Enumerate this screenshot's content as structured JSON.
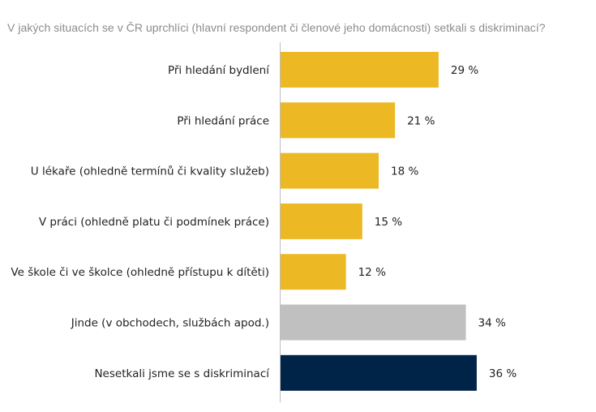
{
  "chart_data": {
    "type": "bar",
    "orientation": "horizontal",
    "title": "V jakých situacích se v ČR uprchlíci (hlavní respondent či členové jeho domácnosti) setkali s diskriminací?",
    "categories": [
      "Při hledání bydlení",
      "Při hledání práce",
      "U lékaře (ohledně termínů či kvality služeb)",
      "V práci (ohledně platu či podmínek práce)",
      "Ve škole či ve školce (ohledně přístupu k dítěti)",
      "Jinde (v obchodech, službách apod.)",
      "Nesetkali jsme se s diskriminací"
    ],
    "values": [
      29,
      21,
      18,
      15,
      12,
      34,
      36
    ],
    "value_labels": [
      "29 %",
      "21 %",
      "18 %",
      "15 %",
      "12 %",
      "34 %",
      "36 %"
    ],
    "bar_colors": [
      "#ecb925",
      "#ecb925",
      "#ecb925",
      "#ecb925",
      "#ecb925",
      "#c0c0c0",
      "#002447"
    ],
    "xlabel": "",
    "ylabel": "",
    "xlim": [
      0,
      36
    ],
    "unit": "%",
    "grid": false,
    "legend": "none"
  }
}
